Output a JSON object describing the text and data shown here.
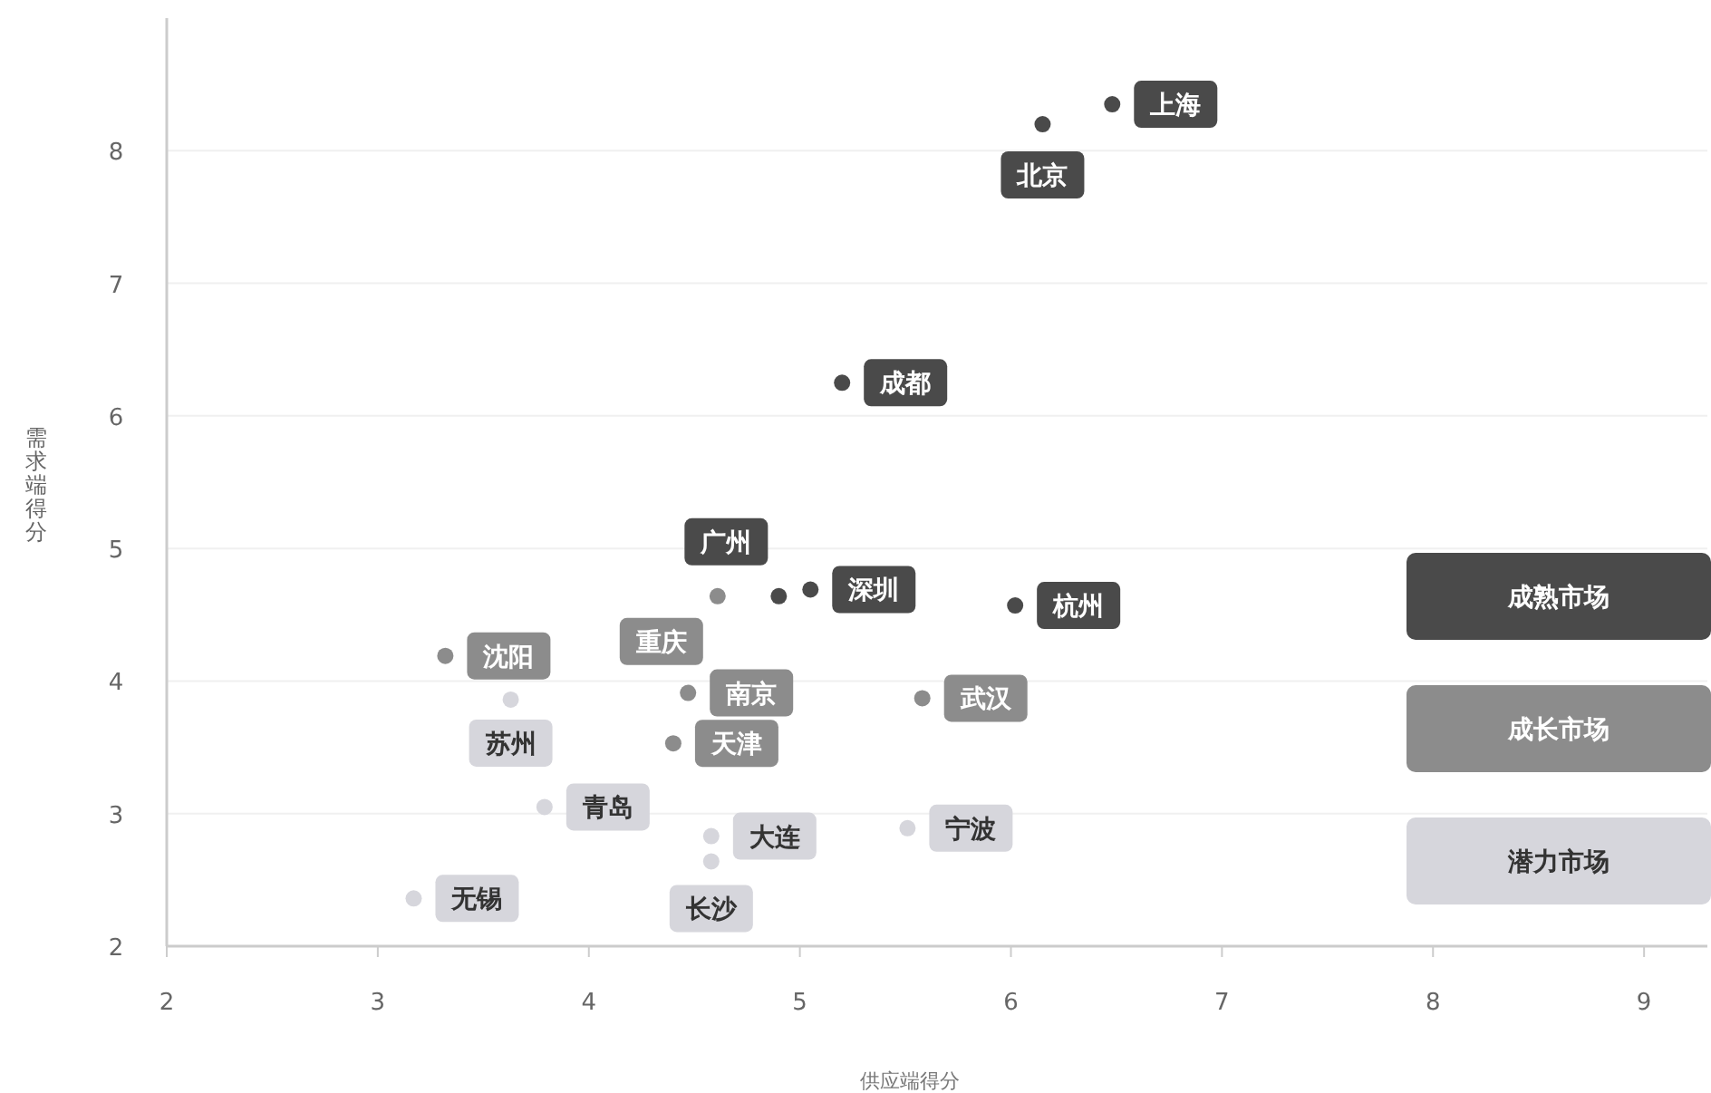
{
  "chart_data": {
    "type": "scatter",
    "xlabel": "供应端得分",
    "ylabel": "需求端得分",
    "xlim": [
      2,
      9.3
    ],
    "ylim": [
      2,
      9
    ],
    "xticks": [
      2,
      3,
      4,
      5,
      6,
      7,
      8,
      9
    ],
    "yticks": [
      2,
      3,
      4,
      5,
      6,
      7,
      8
    ],
    "grid": "y",
    "legend": "right",
    "marker": "circle",
    "series": [
      {
        "name": "成熟市场",
        "color": "#4a4a4a",
        "x": [
          6.48,
          6.15,
          5.2,
          4.9,
          5.05,
          6.02
        ],
        "values": [
          8.35,
          8.2,
          6.25,
          4.64,
          4.69,
          4.57
        ]
      },
      {
        "name": "成长市场",
        "color": "#8c8c8c",
        "x": [
          4.61,
          3.32,
          4.47,
          4.4,
          5.58
        ],
        "values": [
          4.64,
          4.19,
          3.91,
          3.53,
          3.87
        ]
      },
      {
        "name": "潜力市场",
        "color": "#d6d6dc",
        "x": [
          3.63,
          3.79,
          4.58,
          4.58,
          5.51,
          3.17
        ],
        "values": [
          3.86,
          3.05,
          2.83,
          2.64,
          2.89,
          2.36
        ]
      }
    ],
    "annotations": [
      {
        "text": "上海",
        "x": 6.48,
        "y": 8.35
      },
      {
        "text": "北京",
        "x": 6.15,
        "y": 8.2
      },
      {
        "text": "成都",
        "x": 5.2,
        "y": 6.25
      },
      {
        "text": "广州",
        "x": 4.9,
        "y": 4.64
      },
      {
        "text": "深圳",
        "x": 5.05,
        "y": 4.69
      },
      {
        "text": "杭州",
        "x": 6.02,
        "y": 4.57
      },
      {
        "text": "重庆",
        "x": 4.61,
        "y": 4.64
      },
      {
        "text": "沈阳",
        "x": 3.32,
        "y": 4.19
      },
      {
        "text": "南京",
        "x": 4.47,
        "y": 3.91
      },
      {
        "text": "天津",
        "x": 4.4,
        "y": 3.53
      },
      {
        "text": "武汉",
        "x": 5.58,
        "y": 3.87
      },
      {
        "text": "苏州",
        "x": 3.63,
        "y": 3.86
      },
      {
        "text": "青岛",
        "x": 3.79,
        "y": 3.05
      },
      {
        "text": "大连",
        "x": 4.58,
        "y": 2.83
      },
      {
        "text": "长沙",
        "x": 4.58,
        "y": 2.64
      },
      {
        "text": "宁波",
        "x": 5.51,
        "y": 2.89
      },
      {
        "text": "无锡",
        "x": 3.17,
        "y": 2.36
      }
    ]
  }
}
